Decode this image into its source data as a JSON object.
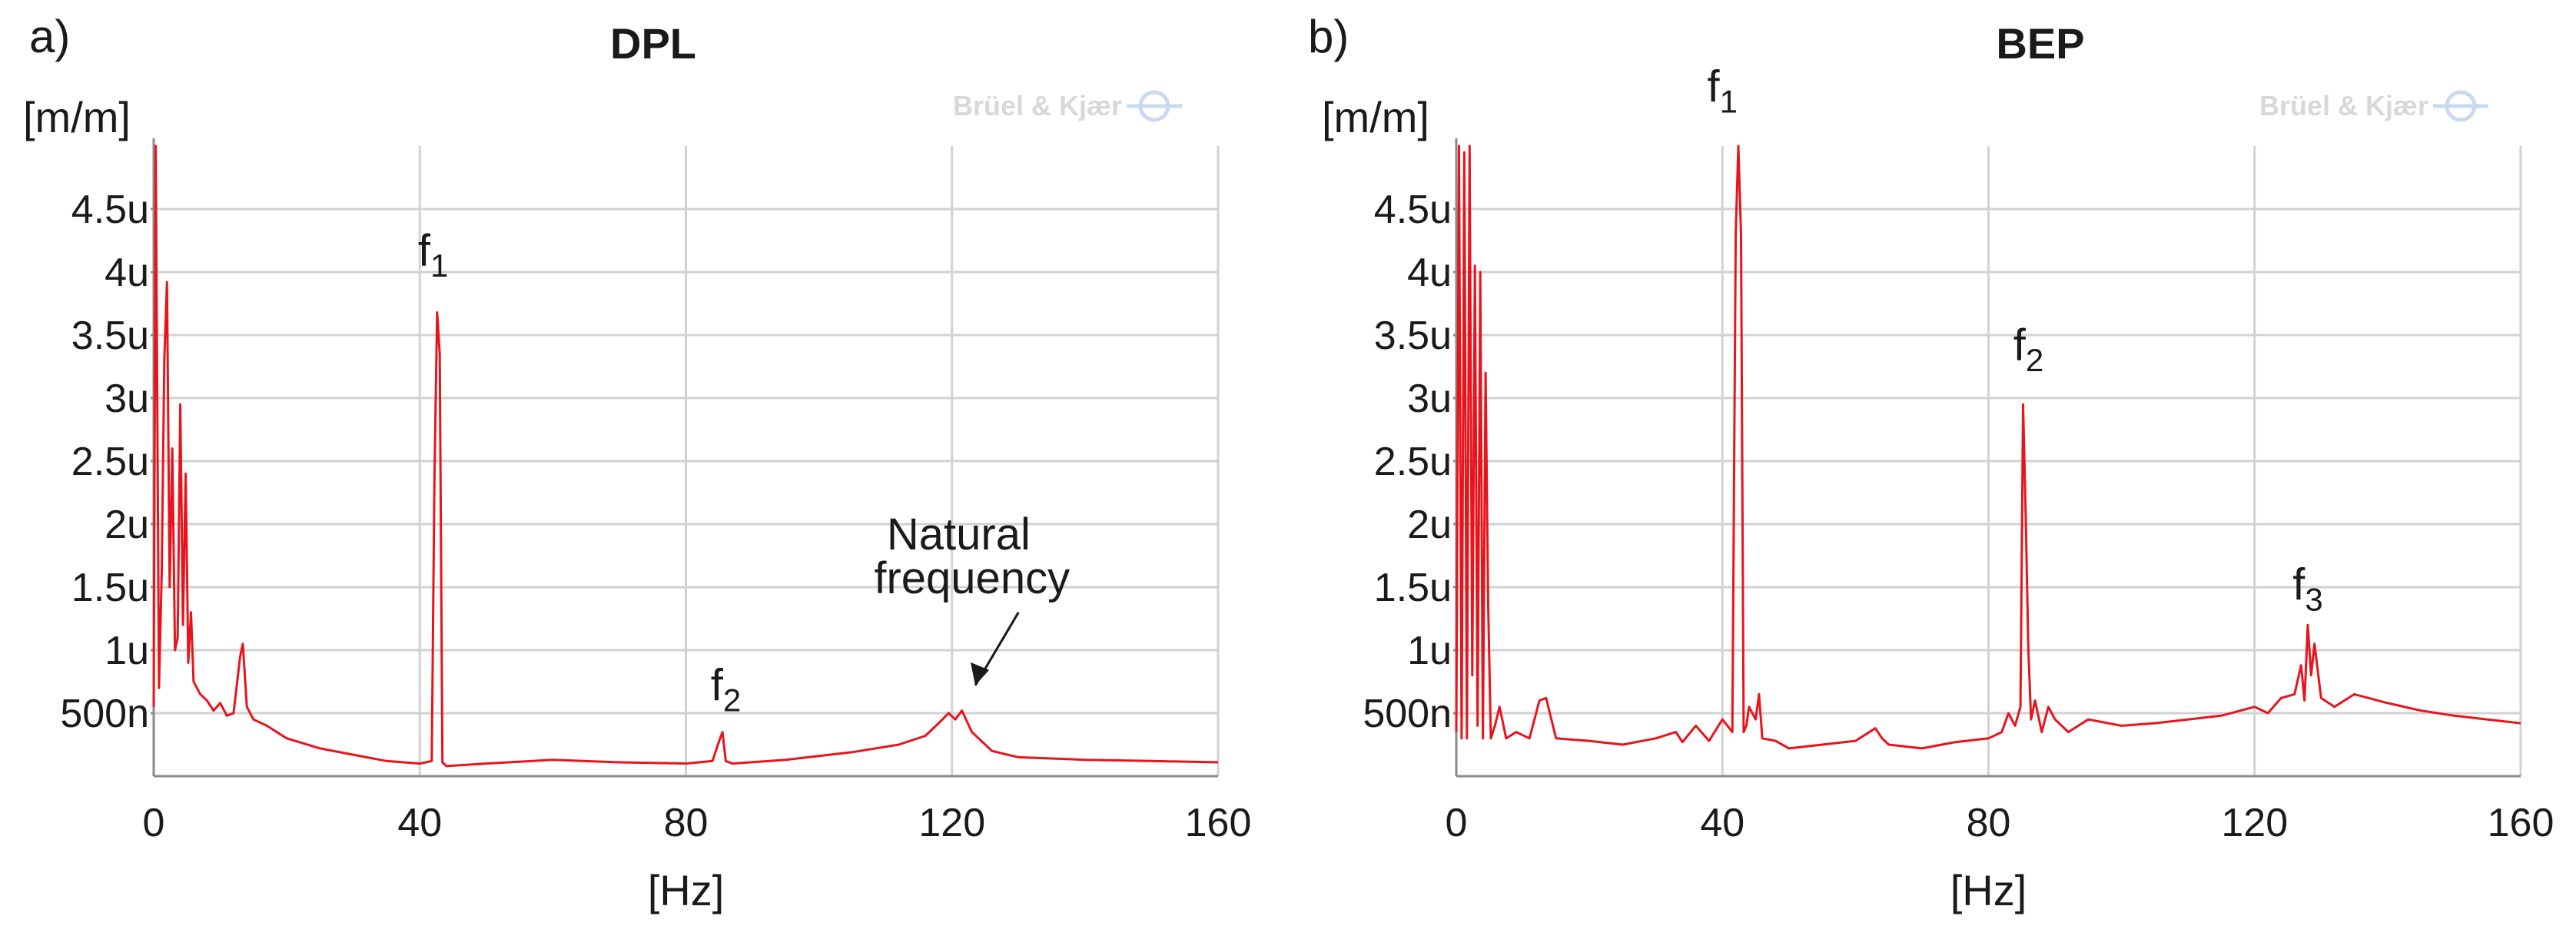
{
  "chart_data": [
    {
      "type": "line",
      "panel_label": "a)",
      "title": "DPL",
      "ylabel": "[m/m]",
      "xlabel": "[Hz]",
      "watermark": "Brüel & Kjær",
      "xlim": [
        0,
        160
      ],
      "ylim": [
        0,
        5
      ],
      "xticks": [
        0,
        40,
        80,
        120,
        160
      ],
      "xtick_labels": [
        "0",
        "40",
        "80",
        "120",
        "160"
      ],
      "yticks": [
        0.5,
        1,
        1.5,
        2,
        2.5,
        3,
        3.5,
        4,
        4.5
      ],
      "ytick_labels": [
        "500n",
        "1u",
        "1.5u",
        "2u",
        "2.5u",
        "3u",
        "3.5u",
        "4u",
        "4.5u"
      ],
      "grid": true,
      "series": [
        {
          "name": "DPL spectrum",
          "color": "#e8141c",
          "x": [
            0,
            0.3,
            0.8,
            1.2,
            1.6,
            2.0,
            2.4,
            2.8,
            3.2,
            3.6,
            4.0,
            4.4,
            4.8,
            5.2,
            5.6,
            6.0,
            7.0,
            8.0,
            9.0,
            10.0,
            11.0,
            12.0,
            13.0,
            13.4,
            14.0,
            15.0,
            17.0,
            20.0,
            25.0,
            30.0,
            35.0,
            40.0,
            41.8,
            42.2,
            42.6,
            43.0,
            43.4,
            44.0,
            50.0,
            60.0,
            70.0,
            80.0,
            84.0,
            85.0,
            85.5,
            86.0,
            87.0,
            95.0,
            105.0,
            112.0,
            116.0,
            118.0,
            119.5,
            120.5,
            121.5,
            123.0,
            126.0,
            130.0,
            140.0,
            150.0,
            160.0
          ],
          "y": [
            0.55,
            5.0,
            0.7,
            1.6,
            3.3,
            3.92,
            1.5,
            2.6,
            1.0,
            1.1,
            2.95,
            1.2,
            2.4,
            0.9,
            1.3,
            0.75,
            0.65,
            0.6,
            0.52,
            0.58,
            0.48,
            0.5,
            0.95,
            1.05,
            0.55,
            0.45,
            0.4,
            0.3,
            0.22,
            0.17,
            0.12,
            0.1,
            0.12,
            2.35,
            3.68,
            3.35,
            0.11,
            0.08,
            0.1,
            0.13,
            0.11,
            0.1,
            0.12,
            0.28,
            0.35,
            0.12,
            0.1,
            0.13,
            0.19,
            0.25,
            0.32,
            0.42,
            0.5,
            0.45,
            0.52,
            0.35,
            0.2,
            0.15,
            0.13,
            0.12,
            0.11
          ]
        }
      ],
      "annotations": [
        {
          "text": "f",
          "sub": "1",
          "x": 42,
          "y": 4.05
        },
        {
          "text": "f",
          "sub": "2",
          "x": 86,
          "y": 0.6
        },
        {
          "text": "Natural",
          "x": 121,
          "y": 1.8
        },
        {
          "text": "frequency",
          "x": 123,
          "y": 1.45
        }
      ]
    },
    {
      "type": "line",
      "panel_label": "b)",
      "title": "BEP",
      "ylabel": "[m/m]",
      "xlabel": "[Hz]",
      "watermark": "Brüel & Kjær",
      "xlim": [
        0,
        160
      ],
      "ylim": [
        0,
        5
      ],
      "xticks": [
        0,
        40,
        80,
        120,
        160
      ],
      "xtick_labels": [
        "0",
        "40",
        "80",
        "120",
        "160"
      ],
      "yticks": [
        0.5,
        1,
        1.5,
        2,
        2.5,
        3,
        3.5,
        4,
        4.5
      ],
      "ytick_labels": [
        "500n",
        "1u",
        "1.5u",
        "2u",
        "2.5u",
        "3u",
        "3.5u",
        "4u",
        "4.5u"
      ],
      "grid": true,
      "series": [
        {
          "name": "BEP spectrum",
          "color": "#e8141c",
          "x": [
            0,
            0.4,
            0.8,
            1.2,
            1.6,
            2.0,
            2.4,
            2.8,
            3.2,
            3.6,
            4.0,
            4.4,
            4.8,
            5.2,
            5.8,
            6.5,
            7.5,
            9.0,
            11.0,
            12.5,
            13.5,
            15.0,
            20.0,
            25.0,
            30.0,
            33.0,
            34.0,
            36.0,
            38.0,
            40.0,
            41.5,
            42.0,
            42.4,
            42.8,
            43.2,
            43.6,
            44.0,
            45.0,
            45.5,
            46.0,
            48.0,
            50.0,
            55.0,
            60.0,
            63.0,
            64.0,
            65.0,
            70.0,
            75.0,
            80.0,
            82.0,
            83.0,
            84.0,
            84.8,
            85.2,
            85.6,
            86.0,
            86.4,
            87.0,
            88.0,
            89.0,
            90.0,
            92.0,
            95.0,
            100.0,
            105.0,
            110.0,
            115.0,
            120.0,
            122.0,
            124.0,
            126.0,
            127.0,
            127.5,
            128.0,
            128.5,
            129.0,
            130.0,
            132.0,
            135.0,
            140.0,
            145.0,
            150.0,
            155.0,
            160.0
          ],
          "y": [
            0.35,
            5.0,
            0.3,
            4.95,
            0.3,
            5.0,
            0.8,
            4.05,
            0.4,
            4.0,
            0.3,
            3.2,
            1.35,
            0.3,
            0.4,
            0.55,
            0.3,
            0.35,
            0.3,
            0.6,
            0.62,
            0.3,
            0.28,
            0.25,
            0.3,
            0.35,
            0.27,
            0.4,
            0.28,
            0.45,
            0.35,
            4.3,
            5.0,
            4.3,
            0.35,
            0.4,
            0.55,
            0.45,
            0.65,
            0.3,
            0.28,
            0.22,
            0.25,
            0.28,
            0.38,
            0.3,
            0.25,
            0.22,
            0.27,
            0.3,
            0.35,
            0.5,
            0.4,
            0.55,
            2.95,
            2.05,
            1.0,
            0.45,
            0.6,
            0.35,
            0.55,
            0.45,
            0.35,
            0.45,
            0.4,
            0.42,
            0.45,
            0.48,
            0.55,
            0.5,
            0.62,
            0.65,
            0.88,
            0.6,
            1.2,
            0.8,
            1.05,
            0.62,
            0.55,
            0.65,
            0.58,
            0.52,
            0.48,
            0.45,
            0.42
          ]
        }
      ],
      "annotations": [
        {
          "text": "f",
          "sub": "1",
          "x": 40,
          "y": 5.35
        },
        {
          "text": "f",
          "sub": "2",
          "x": 86,
          "y": 3.3
        },
        {
          "text": "f",
          "sub": "3",
          "x": 128,
          "y": 1.4
        }
      ]
    }
  ]
}
